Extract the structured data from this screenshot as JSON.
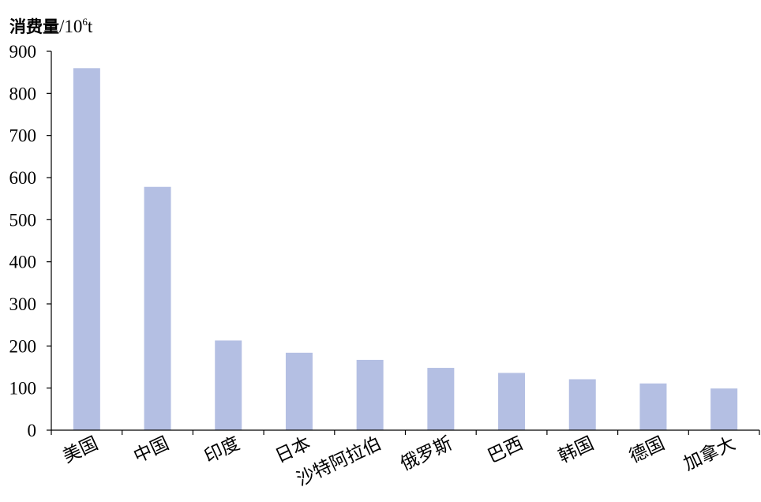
{
  "chart_data": {
    "type": "bar",
    "ylabel": {
      "name": "消费量",
      "unit_base": "/10",
      "unit_exp": "6",
      "unit_suffix": "t"
    },
    "categories": [
      "美国",
      "中国",
      "印度",
      "日本",
      "沙特阿拉伯",
      "俄罗斯",
      "巴西",
      "韩国",
      "德国",
      "加拿大"
    ],
    "values": [
      860,
      578,
      213,
      184,
      167,
      148,
      136,
      121,
      111,
      99
    ],
    "ylim": [
      0,
      900
    ],
    "yticks": [
      0,
      100,
      200,
      300,
      400,
      500,
      600,
      700,
      800,
      900
    ],
    "grid": false,
    "legend": "none",
    "colors": {
      "bar": "#b4bfe3",
      "axis": "#000000"
    }
  }
}
